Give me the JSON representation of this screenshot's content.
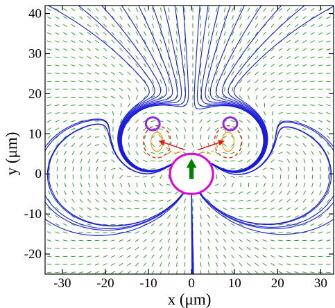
{
  "chart_data": {
    "type": "vector-field",
    "xlabel": "x (μm)",
    "ylabel": "y (μm)",
    "xlim": [
      -34,
      33
    ],
    "ylim": [
      -25,
      42
    ],
    "xticks": [
      -30,
      -20,
      -10,
      0,
      10,
      20,
      30
    ],
    "yticks": [
      -20,
      -10,
      0,
      10,
      20,
      30,
      40
    ],
    "xtick_labels": [
      "-30",
      "-20",
      "-10",
      "0",
      "10",
      "20",
      "30"
    ],
    "ytick_labels": [
      "-20",
      "-10",
      "0",
      "10",
      "20",
      "30",
      "40"
    ],
    "grid": false,
    "legend": "none",
    "large_circle": {
      "cx": 0,
      "cy": 0,
      "r": 5
    },
    "small_circles": [
      {
        "cx": -9,
        "cy": 12.5,
        "r": 1.6
      },
      {
        "cx": 9,
        "cy": 12.5,
        "r": 1.6
      }
    ],
    "vortex_centers": [
      {
        "x": -8,
        "y": 8
      },
      {
        "x": 8.5,
        "y": 8
      }
    ],
    "colors": {
      "streamlines": "#1a1adc",
      "vectors": "#2ca02c",
      "circles": "#e000d8",
      "small_circles": "#8a2be2",
      "dashed_orbit": "#e03000",
      "orange_path": "#f39c12",
      "red_path": "#e02020",
      "direction_arrow": "#007f00"
    }
  }
}
